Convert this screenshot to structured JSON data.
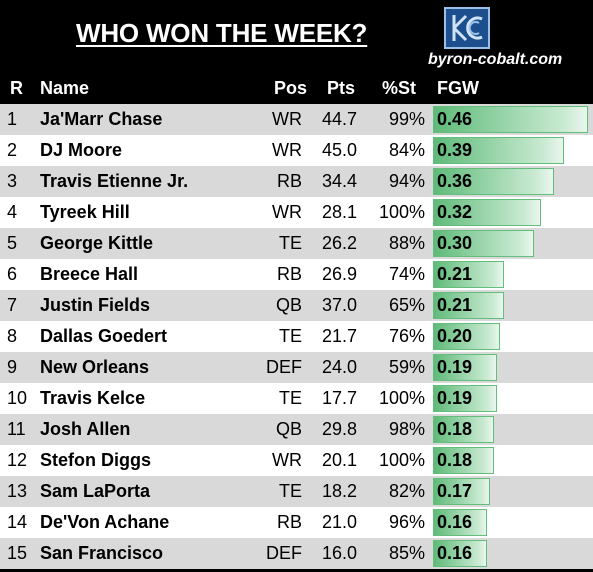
{
  "title": "WHO WON THE WEEK?",
  "site": "byron-cobalt.com",
  "headers": {
    "rank": "R",
    "name": "Name",
    "pos": "Pos",
    "pts": "Pts",
    "pct": "%St",
    "fgw": "FGW"
  },
  "rows": [
    {
      "rank": "1",
      "name": "Ja'Marr Chase",
      "pos": "WR",
      "pts": "44.7",
      "pct": "99%",
      "fgw": "0.46",
      "fgw_value": 0.46
    },
    {
      "rank": "2",
      "name": "DJ Moore",
      "pos": "WR",
      "pts": "45.0",
      "pct": "84%",
      "fgw": "0.39",
      "fgw_value": 0.39
    },
    {
      "rank": "3",
      "name": "Travis Etienne Jr.",
      "pos": "RB",
      "pts": "34.4",
      "pct": "94%",
      "fgw": "0.36",
      "fgw_value": 0.36
    },
    {
      "rank": "4",
      "name": "Tyreek Hill",
      "pos": "WR",
      "pts": "28.1",
      "pct": "100%",
      "fgw": "0.32",
      "fgw_value": 0.32
    },
    {
      "rank": "5",
      "name": "George Kittle",
      "pos": "TE",
      "pts": "26.2",
      "pct": "88%",
      "fgw": "0.30",
      "fgw_value": 0.3
    },
    {
      "rank": "6",
      "name": "Breece Hall",
      "pos": "RB",
      "pts": "26.9",
      "pct": "74%",
      "fgw": "0.21",
      "fgw_value": 0.21
    },
    {
      "rank": "7",
      "name": "Justin Fields",
      "pos": "QB",
      "pts": "37.0",
      "pct": "65%",
      "fgw": "0.21",
      "fgw_value": 0.21
    },
    {
      "rank": "8",
      "name": "Dallas Goedert",
      "pos": "TE",
      "pts": "21.7",
      "pct": "76%",
      "fgw": "0.20",
      "fgw_value": 0.2
    },
    {
      "rank": "9",
      "name": "New Orleans",
      "pos": "DEF",
      "pts": "24.0",
      "pct": "59%",
      "fgw": "0.19",
      "fgw_value": 0.19
    },
    {
      "rank": "10",
      "name": "Travis Kelce",
      "pos": "TE",
      "pts": "17.7",
      "pct": "100%",
      "fgw": "0.19",
      "fgw_value": 0.19
    },
    {
      "rank": "11",
      "name": "Josh Allen",
      "pos": "QB",
      "pts": "29.8",
      "pct": "98%",
      "fgw": "0.18",
      "fgw_value": 0.18
    },
    {
      "rank": "12",
      "name": "Stefon Diggs",
      "pos": "WR",
      "pts": "20.1",
      "pct": "100%",
      "fgw": "0.18",
      "fgw_value": 0.18
    },
    {
      "rank": "13",
      "name": "Sam LaPorta",
      "pos": "TE",
      "pts": "18.2",
      "pct": "82%",
      "fgw": "0.17",
      "fgw_value": 0.17
    },
    {
      "rank": "14",
      "name": "De'Von Achane",
      "pos": "RB",
      "pts": "21.0",
      "pct": "96%",
      "fgw": "0.16",
      "fgw_value": 0.16
    },
    {
      "rank": "15",
      "name": "San Francisco",
      "pos": "DEF",
      "pts": "16.0",
      "pct": "85%",
      "fgw": "0.16",
      "fgw_value": 0.16
    }
  ],
  "colors": {
    "bar": "#63be7b",
    "row_alt": "#d9d9d9",
    "background": "#000000"
  },
  "logo_icon": "kc-logo-icon"
}
